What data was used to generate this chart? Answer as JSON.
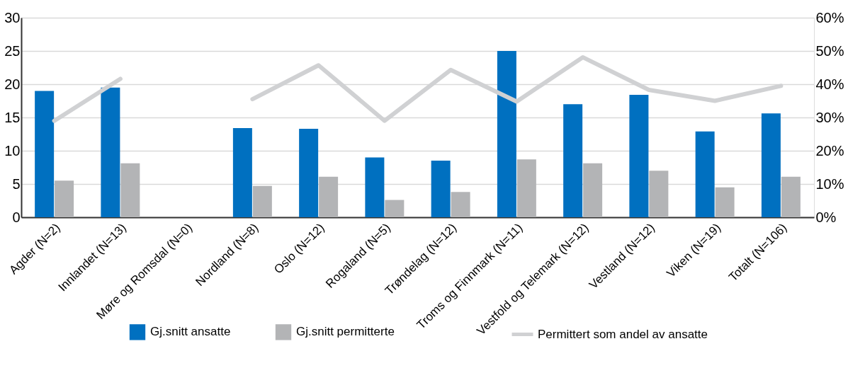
{
  "chart_data": {
    "type": "bar",
    "categories": [
      "Agder (N=2)",
      "Innlandet (N=13)",
      "Møre og Romsdal (N=0)",
      "Nordland (N=8)",
      "Oslo (N=12)",
      "Rogaland (N=5)",
      "Trøndelag (N=12)",
      "Troms og Finnmark (N=11)",
      "Vestfold og Telemark (N=12)",
      "Vestland (N=12)",
      "Viken (N=19)",
      "Totalt (N=106)"
    ],
    "series": [
      {
        "name": "Gj.snitt ansatte",
        "color": "#0070c0",
        "values": [
          19,
          19.5,
          null,
          13.4,
          13.3,
          9,
          8.5,
          25,
          17,
          18.4,
          12.9,
          15.6
        ]
      },
      {
        "name": "Gj.snitt permitterte",
        "color": "#b3b4b6",
        "values": [
          5.5,
          8.1,
          null,
          4.7,
          6.1,
          2.6,
          3.8,
          8.7,
          8.1,
          7,
          4.5,
          6.1
        ]
      },
      {
        "name": "Permittert som andel av ansatte",
        "color": "#d0d1d3",
        "type": "line",
        "axis": "y2",
        "values": [
          29,
          41.6,
          null,
          35.5,
          45.7,
          29,
          44.3,
          34.8,
          48.1,
          38.3,
          35,
          39.5
        ]
      }
    ],
    "ylim": [
      0,
      30
    ],
    "yticks": [
      0,
      5,
      10,
      15,
      20,
      25,
      30
    ],
    "y2lim": [
      0,
      60
    ],
    "y2ticks": [
      {
        "value": 0,
        "label": "0%"
      },
      {
        "value": 10,
        "label": "10%"
      },
      {
        "value": 20,
        "label": "20%"
      },
      {
        "value": 30,
        "label": "30%"
      },
      {
        "value": 40,
        "label": "40%"
      },
      {
        "value": 50,
        "label": "50%"
      },
      {
        "value": 60,
        "label": "60%"
      }
    ],
    "grid": "y",
    "legend": "bottom"
  }
}
